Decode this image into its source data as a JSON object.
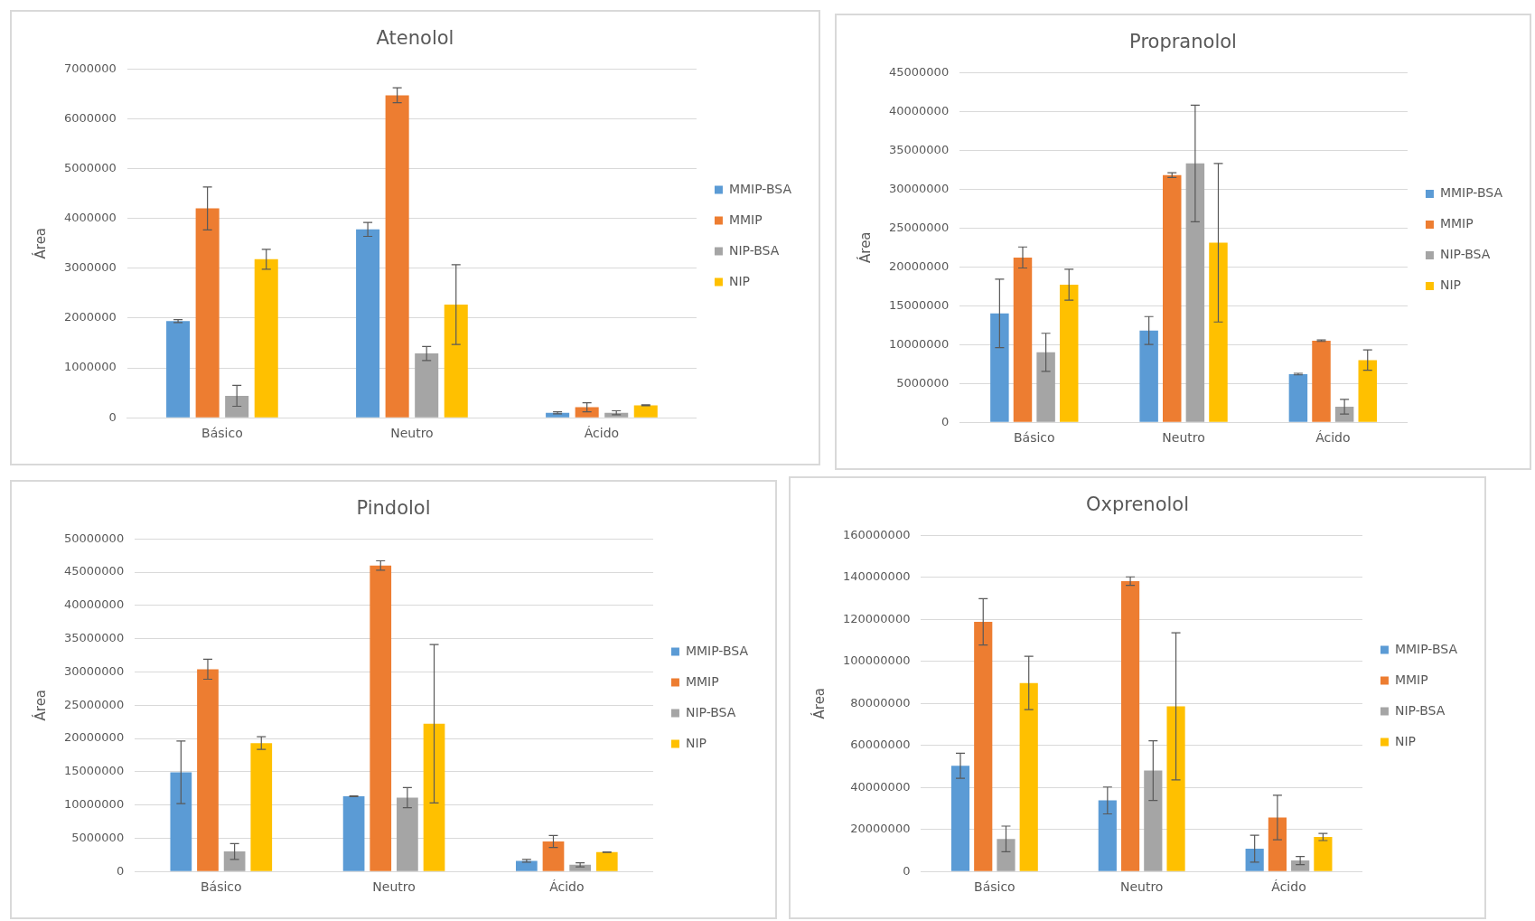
{
  "chart_data": [
    {
      "type": "bar",
      "title": "Atenolol",
      "ylabel": "Área",
      "categories": [
        "Básico",
        "Neutro",
        "Ácido"
      ],
      "ylim": [
        0,
        7000000
      ],
      "yticks": [
        0,
        1000000,
        2000000,
        3000000,
        4000000,
        5000000,
        6000000,
        7000000
      ],
      "grid": "y",
      "legend": "right",
      "series": [
        {
          "name": "MMIP-BSA",
          "color": "#5b9bd5",
          "values": [
            1940000,
            3780000,
            100000
          ],
          "errors": [
            30000,
            140000,
            20000
          ]
        },
        {
          "name": "MMIP",
          "color": "#ed7d31",
          "values": [
            4200000,
            6470000,
            210000
          ],
          "errors": [
            430000,
            150000,
            90000
          ]
        },
        {
          "name": "NIP-BSA",
          "color": "#a5a5a5",
          "values": [
            440000,
            1290000,
            100000
          ],
          "errors": [
            210000,
            140000,
            40000
          ]
        },
        {
          "name": "NIP",
          "color": "#ffc000",
          "values": [
            3180000,
            2270000,
            250000
          ],
          "errors": [
            200000,
            800000,
            10000
          ]
        }
      ]
    },
    {
      "type": "bar",
      "title": "Propranolol",
      "ylabel": "Área",
      "categories": [
        "Básico",
        "Neutro",
        "Ácido"
      ],
      "ylim": [
        0,
        45000000
      ],
      "yticks": [
        0,
        5000000,
        10000000,
        15000000,
        20000000,
        25000000,
        30000000,
        35000000,
        40000000,
        45000000
      ],
      "grid": "y",
      "legend": "right",
      "series": [
        {
          "name": "MMIP-BSA",
          "color": "#5b9bd5",
          "values": [
            14000000,
            11800000,
            6200000
          ],
          "errors": [
            4400000,
            1800000,
            100000
          ]
        },
        {
          "name": "MMIP",
          "color": "#ed7d31",
          "values": [
            21200000,
            31800000,
            10500000
          ],
          "errors": [
            1350000,
            300000,
            100000
          ]
        },
        {
          "name": "NIP-BSA",
          "color": "#a5a5a5",
          "values": [
            9000000,
            33300000,
            2000000
          ],
          "errors": [
            2450000,
            7500000,
            950000
          ]
        },
        {
          "name": "NIP",
          "color": "#ffc000",
          "values": [
            17700000,
            23100000,
            8000000
          ],
          "errors": [
            2000000,
            10200000,
            1300000
          ]
        }
      ]
    },
    {
      "type": "bar",
      "title": "Pindolol",
      "ylabel": "Área",
      "categories": [
        "Básico",
        "Neutro",
        "Ácido"
      ],
      "ylim": [
        0,
        50000000
      ],
      "yticks": [
        0,
        5000000,
        10000000,
        15000000,
        20000000,
        25000000,
        30000000,
        35000000,
        40000000,
        45000000,
        50000000
      ],
      "grid": "y",
      "legend": "right",
      "series": [
        {
          "name": "MMIP-BSA",
          "color": "#5b9bd5",
          "values": [
            14900000,
            11300000,
            1600000
          ],
          "errors": [
            4700000,
            50000,
            200000
          ]
        },
        {
          "name": "MMIP",
          "color": "#ed7d31",
          "values": [
            30400000,
            46000000,
            4500000
          ],
          "errors": [
            1500000,
            700000,
            900000
          ]
        },
        {
          "name": "NIP-BSA",
          "color": "#a5a5a5",
          "values": [
            3000000,
            11100000,
            1000000
          ],
          "errors": [
            1200000,
            1500000,
            300000
          ]
        },
        {
          "name": "NIP",
          "color": "#ffc000",
          "values": [
            19300000,
            22200000,
            2900000
          ],
          "errors": [
            950000,
            11900000,
            50000
          ]
        }
      ]
    },
    {
      "type": "bar",
      "title": "Oxprenolol",
      "ylabel": "Área",
      "categories": [
        "Básico",
        "Neutro",
        "Ácido"
      ],
      "ylim": [
        0,
        160000000
      ],
      "yticks": [
        0,
        20000000,
        40000000,
        60000000,
        80000000,
        100000000,
        120000000,
        140000000,
        160000000
      ],
      "grid": "y",
      "legend": "right",
      "series": [
        {
          "name": "MMIP-BSA",
          "color": "#5b9bd5",
          "values": [
            50300000,
            33800000,
            10800000
          ],
          "errors": [
            6000000,
            6400000,
            6400000
          ]
        },
        {
          "name": "MMIP",
          "color": "#ed7d31",
          "values": [
            118800000,
            138200000,
            25700000
          ],
          "errors": [
            11000000,
            2000000,
            10600000
          ]
        },
        {
          "name": "NIP-BSA",
          "color": "#a5a5a5",
          "values": [
            15500000,
            48000000,
            5200000
          ],
          "errors": [
            6100000,
            14200000,
            1900000
          ]
        },
        {
          "name": "NIP",
          "color": "#ffc000",
          "values": [
            89700000,
            78600000,
            16400000
          ],
          "errors": [
            12700000,
            35000000,
            1700000
          ]
        }
      ]
    }
  ]
}
